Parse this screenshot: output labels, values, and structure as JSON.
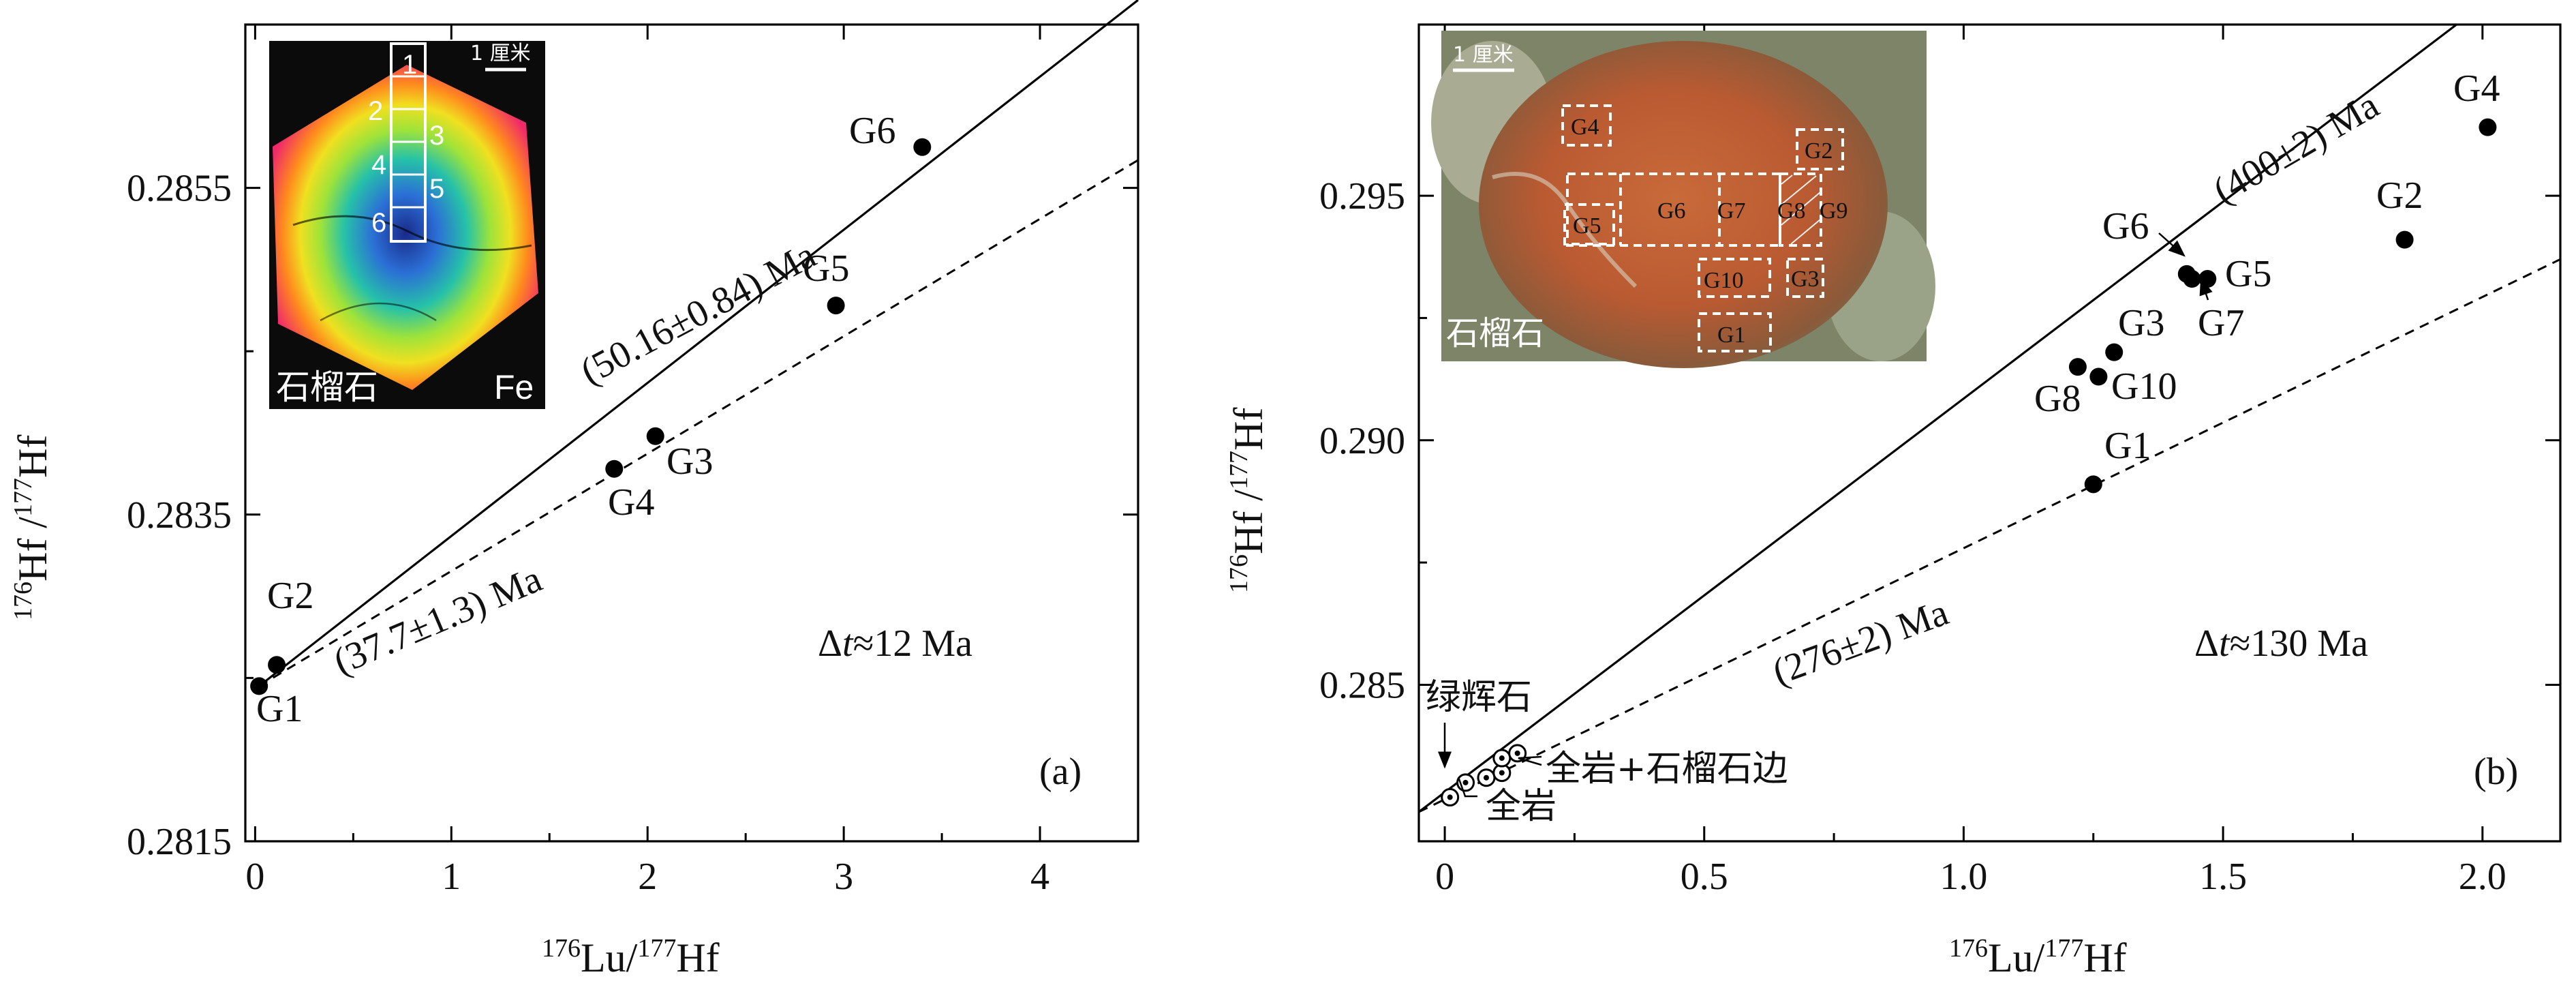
{
  "colors": {
    "axis": "#000000",
    "point": "#000000",
    "frame": "#ffffff"
  },
  "chart_data": [
    {
      "panel": "(a)",
      "type": "scatter",
      "xlabel": {
        "sup1": "176",
        "mid": "Lu/",
        "sup2": "177",
        "end": "Hf"
      },
      "ylabel": {
        "sup1": "176",
        "mid": "Hf /",
        "sup2": "177",
        "end": "Hf"
      },
      "xlim": [
        -0.05,
        4.5
      ],
      "ylim": [
        0.2815,
        0.2865
      ],
      "xticks": [
        0,
        1,
        2,
        3,
        4
      ],
      "xtick_labels": [
        "0",
        "1",
        "2",
        "3",
        "4"
      ],
      "yticks": [
        0.2815,
        0.2835,
        0.2855
      ],
      "ytick_labels": [
        "0.2815",
        "0.2835",
        "0.2855"
      ],
      "grid": false,
      "points": [
        {
          "label": "G1",
          "x": 0.02,
          "y": 0.28245
        },
        {
          "label": "G2",
          "x": 0.11,
          "y": 0.28258
        },
        {
          "label": "G4",
          "x": 1.83,
          "y": 0.28378
        },
        {
          "label": "G3",
          "x": 2.04,
          "y": 0.28398
        },
        {
          "label": "G5",
          "x": 2.96,
          "y": 0.28478
        },
        {
          "label": "G6",
          "x": 3.4,
          "y": 0.28575
        }
      ],
      "lines": [
        {
          "label": "(50.16±0.84) Ma",
          "style": "solid",
          "x0": 0.02,
          "y0": 0.28245,
          "x1": 4.5,
          "y1": 0.28665
        },
        {
          "label": "(37.7±1.3) Ma",
          "style": "dashed",
          "x0": 0.02,
          "y0": 0.28245,
          "x1": 4.5,
          "y1": 0.28567
        }
      ],
      "annotation": {
        "pre": "Δ",
        "it": "t",
        "post": "≈12 Ma"
      },
      "inset": {
        "caption": "石榴石",
        "element": "Fe",
        "scale": "1 厘米",
        "zones": [
          "1",
          "2",
          "3",
          "4",
          "5",
          "6"
        ]
      }
    },
    {
      "panel": "(b)",
      "type": "scatter",
      "xlabel": {
        "sup1": "176",
        "mid": "Lu/",
        "sup2": "177",
        "end": "Hf"
      },
      "ylabel": {
        "sup1": "176",
        "mid": "Hf /",
        "sup2": "177",
        "end": "Hf"
      },
      "xlim": [
        -0.05,
        2.15
      ],
      "ylim": [
        0.2818,
        0.2985
      ],
      "xticks": [
        0,
        0.5,
        1.0,
        1.5,
        2.0
      ],
      "xtick_labels": [
        "0",
        "0.5",
        "1.0",
        "1.5",
        "2.0"
      ],
      "yticks": [
        0.285,
        0.29,
        0.295
      ],
      "ytick_labels": [
        "0.285",
        "0.290",
        "0.295"
      ],
      "grid": false,
      "points": [
        {
          "label": "G1",
          "x": 1.25,
          "y": 0.2891
        },
        {
          "label": "G8",
          "x": 1.22,
          "y": 0.2915
        },
        {
          "label": "G10",
          "x": 1.26,
          "y": 0.2913
        },
        {
          "label": "G3",
          "x": 1.29,
          "y": 0.2918
        },
        {
          "label": "G6",
          "x": 1.43,
          "y": 0.2934
        },
        {
          "label": "G7",
          "x": 1.44,
          "y": 0.2933
        },
        {
          "label": "G5",
          "x": 1.47,
          "y": 0.2933
        },
        {
          "label": "G2",
          "x": 1.85,
          "y": 0.2941
        },
        {
          "label": "G4",
          "x": 2.01,
          "y": 0.2964
        }
      ],
      "open_points": [
        {
          "x": 0.01,
          "y": 0.2827
        },
        {
          "x": 0.04,
          "y": 0.283
        },
        {
          "x": 0.08,
          "y": 0.2831
        },
        {
          "x": 0.11,
          "y": 0.2832
        },
        {
          "x": 0.11,
          "y": 0.2835
        },
        {
          "x": 0.14,
          "y": 0.2836
        }
      ],
      "lines": [
        {
          "label": "(400±2) Ma",
          "style": "solid",
          "x0": -0.05,
          "y0": 0.2824,
          "x1": 1.95,
          "y1": 0.2985
        },
        {
          "label": "(276±2) Ma",
          "style": "dashed",
          "x0": -0.05,
          "y0": 0.2824,
          "x1": 2.15,
          "y1": 0.2937
        }
      ],
      "callouts": {
        "cpx": "绿辉石",
        "whole_rock_rim": "全岩+石榴石边",
        "whole_rock": "全岩"
      },
      "annotation": {
        "pre": "Δ",
        "it": "t",
        "post": "≈130 Ma"
      },
      "inset": {
        "caption": "石榴石",
        "scale": "1 厘米",
        "zones": [
          "G1",
          "G2",
          "G3",
          "G4",
          "G5",
          "G6",
          "G7",
          "G8",
          "G9",
          "G10"
        ]
      }
    }
  ]
}
